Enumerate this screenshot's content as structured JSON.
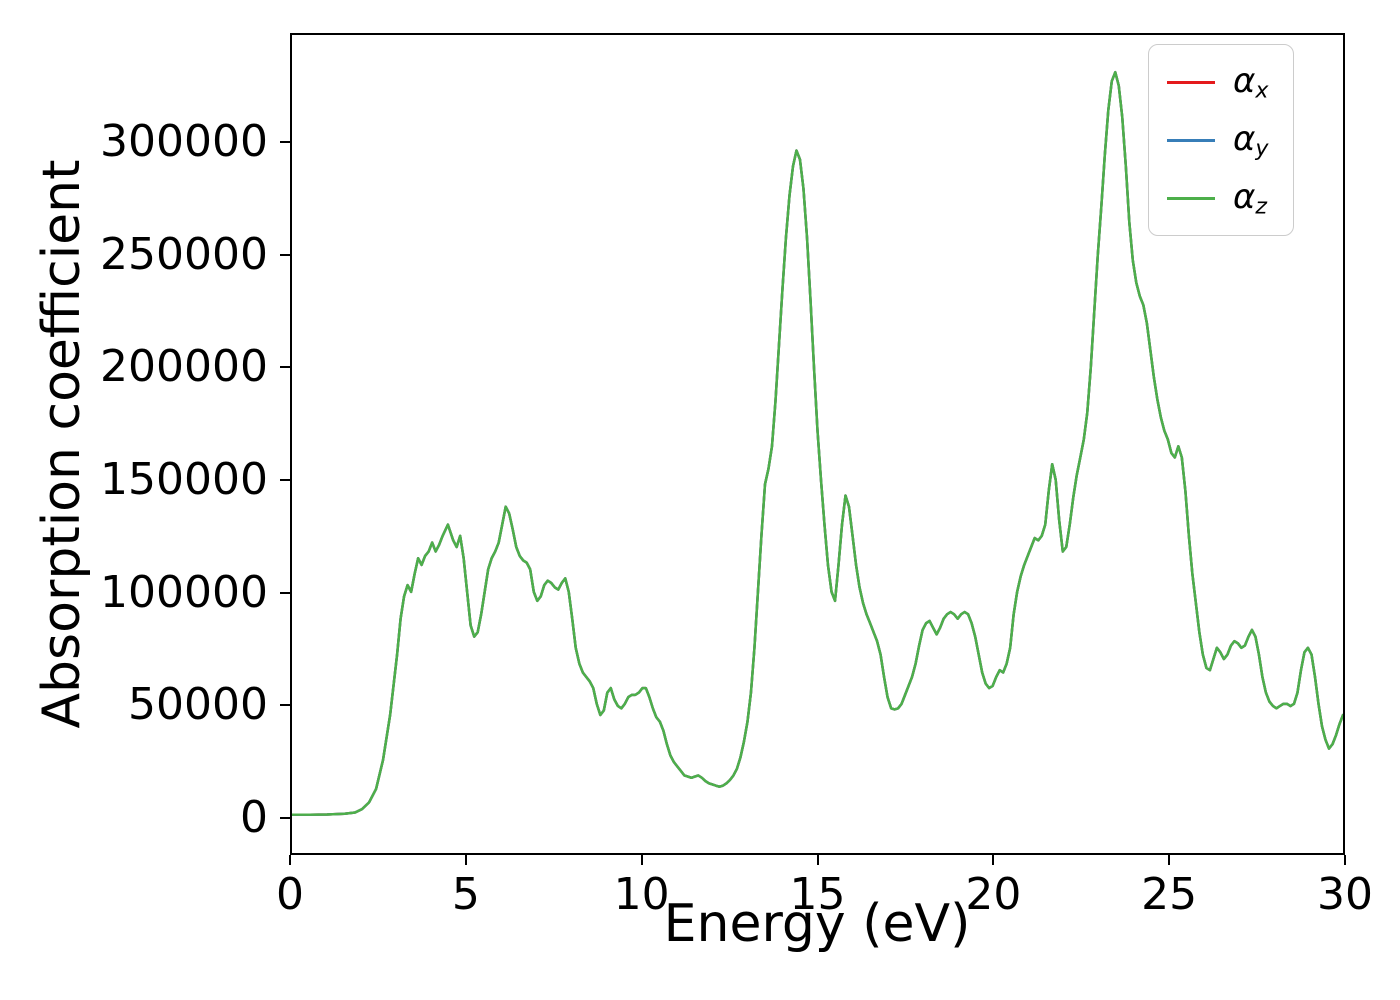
{
  "figure": {
    "background": "#ffffff",
    "frame_color": "#000000"
  },
  "chart_data": {
    "type": "line",
    "title": "",
    "xlabel": "Energy (eV)",
    "ylabel": "Absorption coefficient",
    "xlim": [
      0,
      30
    ],
    "ylim": [
      -16600,
      348600
    ],
    "xticks": [
      0,
      5,
      10,
      15,
      20,
      25,
      30
    ],
    "yticks": [
      0,
      50000,
      100000,
      150000,
      200000,
      250000,
      300000
    ],
    "grid": false,
    "legend": {
      "position": "upper right",
      "entries": [
        {
          "name": "alpha_x",
          "symbol": "α",
          "sub": "x",
          "color": "#e41a1c"
        },
        {
          "name": "alpha_y",
          "symbol": "α",
          "sub": "y",
          "color": "#377eb8"
        },
        {
          "name": "alpha_z",
          "symbol": "α",
          "sub": "z",
          "color": "#4daf4a"
        }
      ]
    },
    "series": [
      {
        "name": "alpha_x",
        "color": "#e41a1c",
        "points_ref": "shared_points"
      },
      {
        "name": "alpha_y",
        "color": "#377eb8",
        "points_ref": "shared_points"
      },
      {
        "name": "alpha_z",
        "color": "#4daf4a",
        "points_ref": "shared_points"
      }
    ],
    "overlap_note": "All three series coincide exactly; only the last-drawn green curve is visible.",
    "shared_points": [
      [
        0,
        500
      ],
      [
        0.5,
        500
      ],
      [
        1,
        600
      ],
      [
        1.5,
        900
      ],
      [
        1.8,
        1500
      ],
      [
        2,
        3000
      ],
      [
        2.2,
        6000
      ],
      [
        2.4,
        12000
      ],
      [
        2.6,
        25000
      ],
      [
        2.8,
        45000
      ],
      [
        3,
        72000
      ],
      [
        3.1,
        88000
      ],
      [
        3.2,
        98000
      ],
      [
        3.3,
        103000
      ],
      [
        3.4,
        100000
      ],
      [
        3.5,
        108000
      ],
      [
        3.6,
        115000
      ],
      [
        3.7,
        112000
      ],
      [
        3.8,
        116000
      ],
      [
        3.9,
        118000
      ],
      [
        4,
        122000
      ],
      [
        4.1,
        118000
      ],
      [
        4.2,
        121000
      ],
      [
        4.3,
        125000
      ],
      [
        4.45,
        130000
      ],
      [
        4.6,
        123000
      ],
      [
        4.7,
        120000
      ],
      [
        4.8,
        125000
      ],
      [
        4.9,
        115000
      ],
      [
        5,
        100000
      ],
      [
        5.1,
        85000
      ],
      [
        5.2,
        80000
      ],
      [
        5.3,
        82000
      ],
      [
        5.4,
        90000
      ],
      [
        5.5,
        100000
      ],
      [
        5.6,
        110000
      ],
      [
        5.7,
        115000
      ],
      [
        5.8,
        118000
      ],
      [
        5.9,
        122000
      ],
      [
        6,
        130000
      ],
      [
        6.1,
        138000
      ],
      [
        6.2,
        135000
      ],
      [
        6.3,
        128000
      ],
      [
        6.4,
        120000
      ],
      [
        6.5,
        116000
      ],
      [
        6.6,
        114000
      ],
      [
        6.7,
        113000
      ],
      [
        6.8,
        110000
      ],
      [
        6.9,
        100000
      ],
      [
        7,
        96000
      ],
      [
        7.1,
        98000
      ],
      [
        7.2,
        103000
      ],
      [
        7.3,
        105000
      ],
      [
        7.4,
        104000
      ],
      [
        7.5,
        102000
      ],
      [
        7.6,
        101000
      ],
      [
        7.7,
        104000
      ],
      [
        7.8,
        106000
      ],
      [
        7.9,
        100000
      ],
      [
        8,
        88000
      ],
      [
        8.1,
        75000
      ],
      [
        8.2,
        68000
      ],
      [
        8.3,
        64000
      ],
      [
        8.4,
        62000
      ],
      [
        8.5,
        60000
      ],
      [
        8.6,
        57000
      ],
      [
        8.7,
        50000
      ],
      [
        8.8,
        45000
      ],
      [
        8.9,
        47000
      ],
      [
        9,
        55000
      ],
      [
        9.1,
        57000
      ],
      [
        9.2,
        52000
      ],
      [
        9.3,
        49000
      ],
      [
        9.4,
        48000
      ],
      [
        9.5,
        50000
      ],
      [
        9.6,
        53000
      ],
      [
        9.7,
        54000
      ],
      [
        9.8,
        54000
      ],
      [
        9.9,
        55000
      ],
      [
        10,
        57000
      ],
      [
        10.1,
        57000
      ],
      [
        10.2,
        53000
      ],
      [
        10.3,
        48000
      ],
      [
        10.4,
        44000
      ],
      [
        10.5,
        42000
      ],
      [
        10.6,
        38000
      ],
      [
        10.7,
        32000
      ],
      [
        10.8,
        27000
      ],
      [
        10.9,
        24000
      ],
      [
        11,
        22000
      ],
      [
        11.1,
        20000
      ],
      [
        11.2,
        18000
      ],
      [
        11.3,
        17500
      ],
      [
        11.4,
        17000
      ],
      [
        11.5,
        17500
      ],
      [
        11.6,
        18000
      ],
      [
        11.7,
        17000
      ],
      [
        11.8,
        15500
      ],
      [
        11.9,
        14500
      ],
      [
        12,
        14000
      ],
      [
        12.1,
        13500
      ],
      [
        12.2,
        13000
      ],
      [
        12.3,
        13500
      ],
      [
        12.4,
        14500
      ],
      [
        12.5,
        16000
      ],
      [
        12.6,
        18000
      ],
      [
        12.7,
        21000
      ],
      [
        12.8,
        26000
      ],
      [
        12.9,
        33000
      ],
      [
        13,
        42000
      ],
      [
        13.1,
        55000
      ],
      [
        13.2,
        75000
      ],
      [
        13.3,
        100000
      ],
      [
        13.4,
        125000
      ],
      [
        13.5,
        148000
      ],
      [
        13.6,
        155000
      ],
      [
        13.7,
        165000
      ],
      [
        13.8,
        185000
      ],
      [
        13.9,
        210000
      ],
      [
        14,
        235000
      ],
      [
        14.1,
        258000
      ],
      [
        14.2,
        277000
      ],
      [
        14.3,
        290000
      ],
      [
        14.4,
        297000
      ],
      [
        14.5,
        293000
      ],
      [
        14.6,
        280000
      ],
      [
        14.7,
        258000
      ],
      [
        14.8,
        230000
      ],
      [
        14.9,
        200000
      ],
      [
        15,
        172000
      ],
      [
        15.1,
        150000
      ],
      [
        15.2,
        130000
      ],
      [
        15.3,
        112000
      ],
      [
        15.4,
        100000
      ],
      [
        15.5,
        96000
      ],
      [
        15.6,
        112000
      ],
      [
        15.7,
        130000
      ],
      [
        15.8,
        143000
      ],
      [
        15.9,
        138000
      ],
      [
        16,
        125000
      ],
      [
        16.1,
        112000
      ],
      [
        16.2,
        102000
      ],
      [
        16.3,
        95000
      ],
      [
        16.4,
        90000
      ],
      [
        16.5,
        86000
      ],
      [
        16.6,
        82000
      ],
      [
        16.7,
        78000
      ],
      [
        16.8,
        72000
      ],
      [
        16.9,
        62000
      ],
      [
        17,
        53000
      ],
      [
        17.1,
        48000
      ],
      [
        17.2,
        47500
      ],
      [
        17.3,
        48000
      ],
      [
        17.4,
        50000
      ],
      [
        17.5,
        54000
      ],
      [
        17.6,
        58000
      ],
      [
        17.7,
        62000
      ],
      [
        17.8,
        68000
      ],
      [
        17.9,
        76000
      ],
      [
        18,
        83000
      ],
      [
        18.1,
        86000
      ],
      [
        18.2,
        87000
      ],
      [
        18.3,
        84000
      ],
      [
        18.4,
        81000
      ],
      [
        18.5,
        84000
      ],
      [
        18.6,
        88000
      ],
      [
        18.7,
        90000
      ],
      [
        18.8,
        91000
      ],
      [
        18.9,
        90000
      ],
      [
        19,
        88000
      ],
      [
        19.1,
        90000
      ],
      [
        19.2,
        91000
      ],
      [
        19.3,
        90000
      ],
      [
        19.4,
        86000
      ],
      [
        19.5,
        80000
      ],
      [
        19.6,
        72000
      ],
      [
        19.7,
        64000
      ],
      [
        19.8,
        59000
      ],
      [
        19.9,
        57000
      ],
      [
        20,
        58000
      ],
      [
        20.1,
        62000
      ],
      [
        20.2,
        65000
      ],
      [
        20.3,
        64000
      ],
      [
        20.4,
        68000
      ],
      [
        20.5,
        75000
      ],
      [
        20.6,
        90000
      ],
      [
        20.7,
        100000
      ],
      [
        20.8,
        107000
      ],
      [
        20.9,
        112000
      ],
      [
        21,
        116000
      ],
      [
        21.1,
        120000
      ],
      [
        21.2,
        124000
      ],
      [
        21.3,
        123000
      ],
      [
        21.4,
        125000
      ],
      [
        21.5,
        130000
      ],
      [
        21.6,
        145000
      ],
      [
        21.7,
        157000
      ],
      [
        21.8,
        150000
      ],
      [
        21.9,
        132000
      ],
      [
        22,
        118000
      ],
      [
        22.1,
        120000
      ],
      [
        22.2,
        130000
      ],
      [
        22.3,
        142000
      ],
      [
        22.4,
        152000
      ],
      [
        22.5,
        160000
      ],
      [
        22.6,
        168000
      ],
      [
        22.7,
        180000
      ],
      [
        22.8,
        200000
      ],
      [
        22.9,
        225000
      ],
      [
        23,
        250000
      ],
      [
        23.1,
        272000
      ],
      [
        23.2,
        295000
      ],
      [
        23.3,
        315000
      ],
      [
        23.4,
        328000
      ],
      [
        23.5,
        332000
      ],
      [
        23.6,
        326000
      ],
      [
        23.7,
        312000
      ],
      [
        23.8,
        290000
      ],
      [
        23.9,
        265000
      ],
      [
        24,
        248000
      ],
      [
        24.1,
        238000
      ],
      [
        24.2,
        232000
      ],
      [
        24.3,
        228000
      ],
      [
        24.4,
        220000
      ],
      [
        24.5,
        208000
      ],
      [
        24.6,
        196000
      ],
      [
        24.7,
        186000
      ],
      [
        24.8,
        178000
      ],
      [
        24.9,
        172000
      ],
      [
        25,
        168000
      ],
      [
        25.1,
        162000
      ],
      [
        25.2,
        160000
      ],
      [
        25.3,
        165000
      ],
      [
        25.4,
        160000
      ],
      [
        25.5,
        145000
      ],
      [
        25.6,
        125000
      ],
      [
        25.7,
        108000
      ],
      [
        25.8,
        95000
      ],
      [
        25.9,
        82000
      ],
      [
        26,
        72000
      ],
      [
        26.1,
        66000
      ],
      [
        26.2,
        65000
      ],
      [
        26.3,
        70000
      ],
      [
        26.4,
        75000
      ],
      [
        26.5,
        73000
      ],
      [
        26.6,
        70000
      ],
      [
        26.7,
        72000
      ],
      [
        26.8,
        76000
      ],
      [
        26.9,
        78000
      ],
      [
        27,
        77000
      ],
      [
        27.1,
        75000
      ],
      [
        27.2,
        76000
      ],
      [
        27.3,
        80000
      ],
      [
        27.4,
        83000
      ],
      [
        27.5,
        80000
      ],
      [
        27.6,
        72000
      ],
      [
        27.7,
        62000
      ],
      [
        27.8,
        55000
      ],
      [
        27.9,
        51000
      ],
      [
        28,
        49000
      ],
      [
        28.1,
        48000
      ],
      [
        28.2,
        49000
      ],
      [
        28.3,
        50000
      ],
      [
        28.4,
        50000
      ],
      [
        28.5,
        49000
      ],
      [
        28.6,
        50000
      ],
      [
        28.7,
        55000
      ],
      [
        28.8,
        65000
      ],
      [
        28.9,
        73000
      ],
      [
        29,
        75000
      ],
      [
        29.1,
        72000
      ],
      [
        29.2,
        62000
      ],
      [
        29.3,
        50000
      ],
      [
        29.4,
        40000
      ],
      [
        29.5,
        34000
      ],
      [
        29.6,
        30000
      ],
      [
        29.7,
        32000
      ],
      [
        29.8,
        36000
      ],
      [
        29.9,
        41000
      ],
      [
        30,
        45000
      ]
    ]
  }
}
